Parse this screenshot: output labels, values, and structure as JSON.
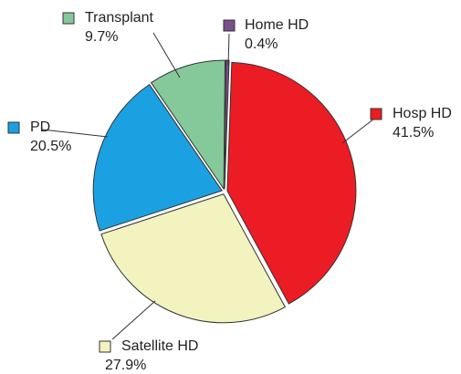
{
  "chart_data": {
    "type": "pie",
    "categories": [
      "Home HD",
      "Hosp HD",
      "Satellite HD",
      "PD",
      "Transplant"
    ],
    "values": [
      0.4,
      41.5,
      27.9,
      20.5,
      9.7
    ],
    "value_labels": [
      "0.4%",
      "41.5%",
      "27.9%",
      "20.5%",
      "9.7%"
    ],
    "colors": [
      "#7a4d8c",
      "#ec1c24",
      "#f3f3c0",
      "#1ba1e2",
      "#85c99a"
    ]
  }
}
